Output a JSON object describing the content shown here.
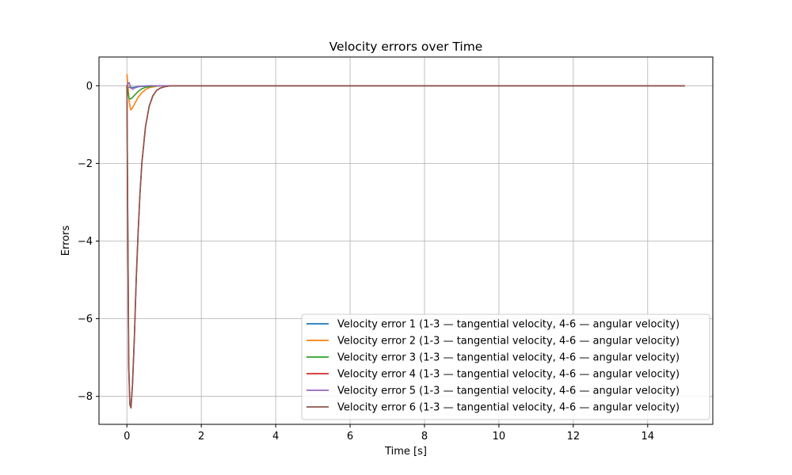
{
  "chart_data": {
    "type": "line",
    "title": "Velocity errors over Time",
    "xlabel": "Time [s]",
    "ylabel": "Errors",
    "xlim": [
      -0.75,
      15.75
    ],
    "ylim": [
      -8.72,
      0.74
    ],
    "xticks": [
      0,
      2,
      4,
      6,
      8,
      10,
      12,
      14
    ],
    "yticks": [
      0,
      -2,
      -4,
      -6,
      -8
    ],
    "xtick_labels": [
      "0",
      "2",
      "4",
      "6",
      "8",
      "10",
      "12",
      "14"
    ],
    "ytick_labels": [
      "0",
      "−2",
      "−4",
      "−6",
      "−8"
    ],
    "grid": true,
    "legend_position": "lower-right",
    "series": [
      {
        "name": "Velocity error 1 (1-3 — tangential velocity, 4-6 — angular velocity)",
        "color": "#1f77b4",
        "x": [
          0,
          0.02,
          0.05,
          0.1,
          0.2,
          0.3,
          0.5,
          0.8,
          1.0,
          15
        ],
        "y": [
          0.0,
          -0.02,
          -0.04,
          -0.05,
          -0.04,
          -0.02,
          -0.01,
          0.0,
          0.0,
          0.0
        ]
      },
      {
        "name": "Velocity error 2 (1-3 — tangential velocity, 4-6 — angular velocity)",
        "color": "#ff7f0e",
        "x": [
          0,
          0.03,
          0.06,
          0.1,
          0.13,
          0.2,
          0.3,
          0.4,
          0.5,
          0.6,
          0.8,
          1.0,
          15
        ],
        "y": [
          0.3,
          0.0,
          -0.4,
          -0.62,
          -0.6,
          -0.48,
          -0.3,
          -0.18,
          -0.1,
          -0.05,
          -0.01,
          0.0,
          0.0
        ]
      },
      {
        "name": "Velocity error 3 (1-3 — tangential velocity, 4-6 — angular velocity)",
        "color": "#2ca02c",
        "x": [
          0,
          0.03,
          0.06,
          0.1,
          0.15,
          0.2,
          0.3,
          0.4,
          0.5,
          0.7,
          1.0,
          15
        ],
        "y": [
          0.0,
          -0.2,
          -0.33,
          -0.34,
          -0.3,
          -0.25,
          -0.15,
          -0.08,
          -0.04,
          -0.01,
          0.0,
          0.0
        ]
      },
      {
        "name": "Velocity error 4 (1-3 — tangential velocity, 4-6 — angular velocity)",
        "color": "#d62728",
        "x": [
          0,
          0.02,
          0.05,
          0.08,
          0.11,
          0.15,
          0.2,
          0.25,
          0.3,
          0.35,
          0.4,
          0.5,
          0.6,
          0.7,
          0.8,
          0.9,
          1.0,
          1.1,
          1.2,
          15
        ],
        "y": [
          0.0,
          -3.0,
          -7.2,
          -8.2,
          -8.28,
          -7.7,
          -6.5,
          -5.0,
          -3.8,
          -2.8,
          -2.0,
          -1.05,
          -0.52,
          -0.25,
          -0.12,
          -0.06,
          -0.03,
          -0.01,
          0.0,
          0.0
        ]
      },
      {
        "name": "Velocity error 5 (1-3 — tangential velocity, 4-6 — angular velocity)",
        "color": "#9467bd",
        "x": [
          0,
          0.03,
          0.06,
          0.09,
          0.12,
          0.16,
          0.2,
          0.3,
          0.4,
          0.6,
          1.0,
          15
        ],
        "y": [
          0.0,
          0.06,
          0.08,
          0.0,
          -0.07,
          -0.09,
          -0.06,
          -0.03,
          -0.01,
          0.0,
          0.0,
          0.0
        ]
      },
      {
        "name": "Velocity error 6 (1-3 — tangential velocity, 4-6 — angular velocity)",
        "color": "#8c564b",
        "x": [
          0,
          0.02,
          0.05,
          0.08,
          0.11,
          0.15,
          0.2,
          0.25,
          0.3,
          0.35,
          0.4,
          0.5,
          0.6,
          0.7,
          0.8,
          0.9,
          1.0,
          1.1,
          1.2,
          15
        ],
        "y": [
          0.0,
          -3.1,
          -7.3,
          -8.22,
          -8.3,
          -7.72,
          -6.52,
          -5.02,
          -3.82,
          -2.82,
          -2.02,
          -1.06,
          -0.53,
          -0.26,
          -0.12,
          -0.06,
          -0.03,
          -0.01,
          0.0,
          0.0
        ]
      }
    ]
  }
}
